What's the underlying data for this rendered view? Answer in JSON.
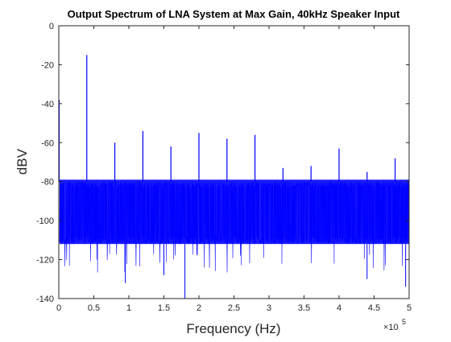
{
  "chart_data": {
    "type": "line",
    "title": "Output Spectrum of LNA System at Max Gain, 40kHz Speaker Input",
    "xlabel": "Frequency (Hz)",
    "ylabel": "dBV",
    "x_scale_multiplier_label": "×10",
    "x_scale_exponent_label": "5",
    "xlim": [
      0,
      500000
    ],
    "ylim": [
      -140,
      0
    ],
    "x_ticks": [
      0,
      50000,
      100000,
      150000,
      200000,
      250000,
      300000,
      350000,
      400000,
      450000,
      500000
    ],
    "x_tick_labels": [
      "0",
      "0.5",
      "1",
      "1.5",
      "2",
      "2.5",
      "3",
      "3.5",
      "4",
      "4.5",
      "5"
    ],
    "y_ticks": [
      0,
      -20,
      -40,
      -60,
      -80,
      -100,
      -120,
      -140
    ],
    "y_tick_labels": [
      "0",
      "-20",
      "-40",
      "-60",
      "-80",
      "-100",
      "-120",
      "-140"
    ],
    "grid": false,
    "legend": null,
    "series_color": "#0000ff",
    "noise_floor": {
      "x_range": [
        1000,
        500000
      ],
      "mean_dbv": -95,
      "upper_envelope_dbv": -80,
      "lower_envelope_dbv": -112,
      "deepest_dips_dbv": [
        -140,
        -134,
        -132,
        -130,
        -128
      ]
    },
    "peaks": [
      {
        "x": 0,
        "y": -38
      },
      {
        "x": 40000,
        "y": -15
      },
      {
        "x": 80000,
        "y": -60
      },
      {
        "x": 120000,
        "y": -54
      },
      {
        "x": 160000,
        "y": -62
      },
      {
        "x": 200000,
        "y": -55
      },
      {
        "x": 240000,
        "y": -58
      },
      {
        "x": 280000,
        "y": -56
      },
      {
        "x": 320000,
        "y": -73
      },
      {
        "x": 360000,
        "y": -72
      },
      {
        "x": 400000,
        "y": -63
      },
      {
        "x": 440000,
        "y": -75
      },
      {
        "x": 480000,
        "y": -68
      }
    ]
  }
}
